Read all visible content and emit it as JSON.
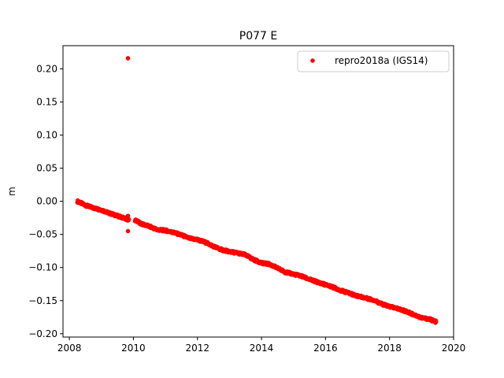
{
  "chart_data": {
    "type": "scatter",
    "title": "P077 E",
    "xlabel": "",
    "ylabel": "m",
    "xlim": [
      2007.8,
      2020.0
    ],
    "ylim": [
      -0.205,
      0.235
    ],
    "xticks": [
      2008,
      2010,
      2012,
      2014,
      2016,
      2018,
      2020
    ],
    "yticks": [
      0.2,
      0.15,
      0.1,
      0.05,
      0.0,
      -0.05,
      -0.1,
      -0.15,
      -0.2
    ],
    "ytick_labels": [
      "0.20",
      "0.15",
      "0.10",
      "0.05",
      "0.00",
      "−0.05",
      "−0.10",
      "−0.15",
      "−0.20"
    ],
    "grid": false,
    "legend_position": "top-right",
    "series": [
      {
        "name": "repro2018a (IGS14)",
        "color": "#ff0000",
        "marker": "circle",
        "x": [
          2008.25,
          2008.5,
          2008.75,
          2009.0,
          2009.25,
          2009.5,
          2009.75,
          2009.85,
          2010.0,
          2010.25,
          2010.5,
          2010.75,
          2011.0,
          2011.25,
          2011.5,
          2011.75,
          2012.0,
          2012.25,
          2012.5,
          2012.75,
          2013.0,
          2013.25,
          2013.5,
          2013.75,
          2014.0,
          2014.25,
          2014.5,
          2014.75,
          2015.0,
          2015.25,
          2015.5,
          2015.75,
          2016.0,
          2016.25,
          2016.5,
          2016.75,
          2017.0,
          2017.25,
          2017.5,
          2017.75,
          2018.0,
          2018.25,
          2018.5,
          2018.75,
          2019.0,
          2019.25,
          2019.45
        ],
        "y": [
          0.0,
          -0.006,
          -0.01,
          -0.013,
          -0.018,
          -0.022,
          -0.026,
          -0.028,
          -0.027,
          -0.034,
          -0.038,
          -0.043,
          -0.044,
          -0.047,
          -0.051,
          -0.056,
          -0.058,
          -0.062,
          -0.068,
          -0.073,
          -0.076,
          -0.078,
          -0.081,
          -0.088,
          -0.093,
          -0.095,
          -0.101,
          -0.107,
          -0.11,
          -0.113,
          -0.118,
          -0.122,
          -0.126,
          -0.13,
          -0.135,
          -0.139,
          -0.143,
          -0.146,
          -0.149,
          -0.155,
          -0.159,
          -0.162,
          -0.166,
          -0.171,
          -0.176,
          -0.178,
          -0.182
        ]
      }
    ],
    "outliers": {
      "x": [
        2009.83,
        2009.83,
        2009.83
      ],
      "y": [
        0.216,
        -0.045,
        -0.022
      ]
    }
  }
}
